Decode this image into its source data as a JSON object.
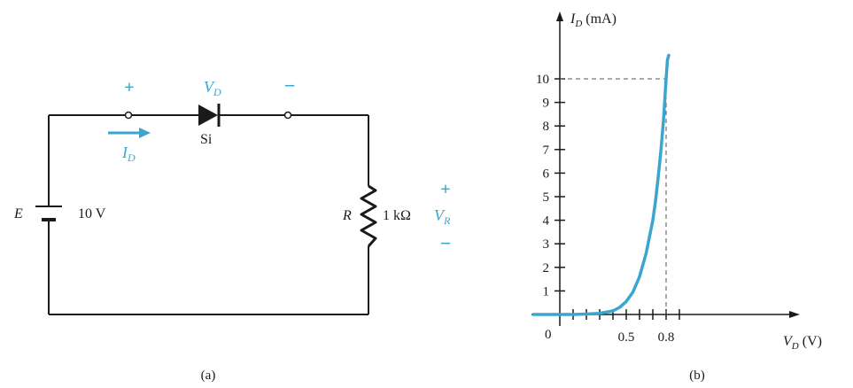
{
  "colors": {
    "ink": "#1a1a1a",
    "accent": "#3aa6cf"
  },
  "circuit": {
    "plus_top": "+",
    "vd_main": "V",
    "vd_sub": "D",
    "minus_top": "−",
    "diode_material": "Si",
    "id_main": "I",
    "id_sub": "D",
    "source_name": "E",
    "source_value": "10 V",
    "resistor_name": "R",
    "resistor_value": "1 kΩ",
    "plus_r": "+",
    "vr_main": "V",
    "vr_sub": "R",
    "minus_r": "−",
    "caption": "(a)"
  },
  "graph": {
    "caption": "(b)",
    "origin_label": "0",
    "y_axis_main": "I",
    "y_axis_sub": "D",
    "y_axis_unit": " (mA)",
    "x_axis_main": "V",
    "x_axis_sub": "D",
    "x_axis_unit": " (V)",
    "y_tick_labels": [
      "1",
      "2",
      "3",
      "4",
      "5",
      "6",
      "7",
      "8",
      "9",
      "10"
    ],
    "x_tick_labels": [
      "0.5",
      "0.8"
    ]
  },
  "chart_data": {
    "type": "line",
    "xlabel": "V_D (V)",
    "ylabel": "I_D (mA)",
    "xlim": [
      0,
      1.0
    ],
    "ylim": [
      0,
      11
    ],
    "x_ticks": [
      0.1,
      0.2,
      0.3,
      0.4,
      0.5,
      0.6,
      0.7,
      0.8,
      0.9
    ],
    "y_ticks": [
      1,
      2,
      3,
      4,
      5,
      6,
      7,
      8,
      9,
      10
    ],
    "series": [
      {
        "x": [
          -0.2,
          0.0,
          0.1,
          0.2,
          0.3,
          0.4,
          0.45,
          0.5,
          0.55,
          0.6,
          0.65,
          0.7,
          0.72,
          0.74,
          0.76,
          0.78,
          0.8,
          0.81,
          0.82
        ],
        "y": [
          0.0,
          0.0,
          0.0,
          0.02,
          0.05,
          0.15,
          0.3,
          0.55,
          0.95,
          1.6,
          2.6,
          4.0,
          4.8,
          5.8,
          6.9,
          8.2,
          10.0,
          10.8,
          11.0
        ],
        "color": "#3aa6cf"
      }
    ],
    "reference_lines": [
      {
        "from": [
          0.8,
          0
        ],
        "to": [
          0.8,
          10
        ]
      },
      {
        "from": [
          0,
          10
        ],
        "to": [
          0.8,
          10
        ]
      }
    ]
  }
}
